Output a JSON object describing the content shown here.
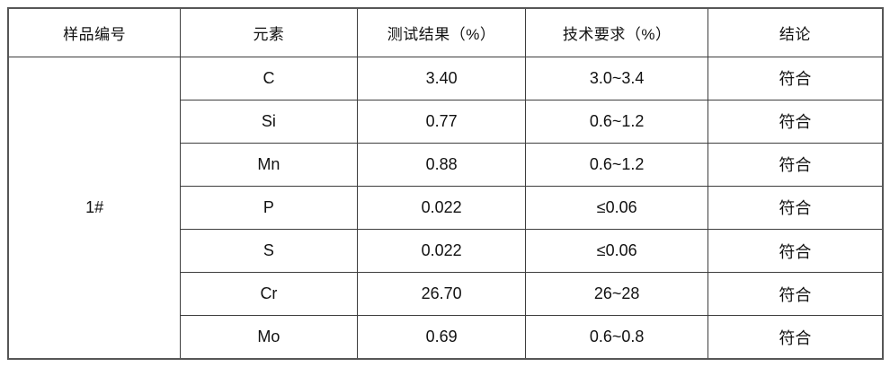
{
  "table": {
    "headers": [
      "样品编号",
      "元素",
      "测试结果（%）",
      "技术要求（%）",
      "结论"
    ],
    "sample_id": "1#",
    "rows": [
      {
        "element": "C",
        "result": "3.40",
        "requirement": "3.0~3.4",
        "conclusion": "符合"
      },
      {
        "element": "Si",
        "result": "0.77",
        "requirement": "0.6~1.2",
        "conclusion": "符合"
      },
      {
        "element": "Mn",
        "result": "0.88",
        "requirement": "0.6~1.2",
        "conclusion": "符合"
      },
      {
        "element": "P",
        "result": "0.022",
        "requirement": "≤0.06",
        "conclusion": "符合"
      },
      {
        "element": "S",
        "result": "0.022",
        "requirement": "≤0.06",
        "conclusion": "符合"
      },
      {
        "element": "Cr",
        "result": "26.70",
        "requirement": "26~28",
        "conclusion": "符合"
      },
      {
        "element": "Mo",
        "result": "0.69",
        "requirement": "0.6~0.8",
        "conclusion": "符合"
      }
    ],
    "colors": {
      "border_outer": "#565656",
      "border_inner": "#3d3d3d",
      "text": "#111111",
      "background": "#ffffff"
    }
  }
}
